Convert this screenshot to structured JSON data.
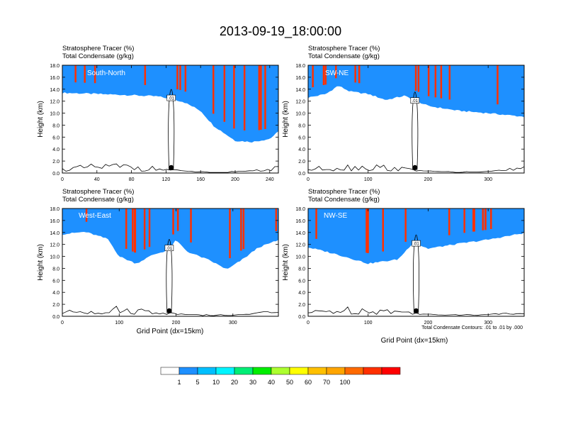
{
  "page": {
    "title": "2013-09-19_18:00:00"
  },
  "colors": {
    "levels": [
      "#ffffff",
      "#1e90ff",
      "#00bfff",
      "#00f5ff",
      "#00ee76",
      "#00ee00",
      "#adff2f",
      "#ffff00",
      "#ffc000",
      "#ffa500",
      "#ff6a00",
      "#ff3000",
      "#ff0000"
    ],
    "contour": "#000000",
    "axis": "#000000"
  },
  "chart_data": [
    {
      "type": "heatmap",
      "panel_label": "South-North",
      "title_line1": "Stratosphere Tracer   (%)",
      "title_line2": "Total Condensate   (g/kg)",
      "ylabel": "Height (km)",
      "xlabel": "",
      "xlim": [
        0,
        250
      ],
      "ylim": [
        0,
        18
      ],
      "xticks": [
        0,
        40,
        80,
        120,
        160,
        200,
        240
      ],
      "yticks": [
        0.0,
        2.0,
        4.0,
        6.0,
        8.0,
        10.0,
        12.0,
        14.0,
        16.0,
        18.0
      ],
      "tracer_top_km": [
        [
          0,
          15.0
        ],
        [
          40,
          14.8
        ],
        [
          80,
          14.6
        ],
        [
          110,
          14.4
        ],
        [
          125,
          14.0
        ],
        [
          140,
          13.5
        ],
        [
          160,
          12.0
        ],
        [
          175,
          9.5
        ],
        [
          200,
          7.0
        ],
        [
          220,
          6.8
        ],
        [
          240,
          7.3
        ],
        [
          250,
          8.5
        ]
      ],
      "band_width_km": 1.6,
      "condensate_label": ".01",
      "marker_x": 126
    },
    {
      "type": "heatmap",
      "panel_label": "SW-NE",
      "title_line1": "Stratosphere Tracer   (%)",
      "title_line2": "Total Condensate   (g/kg)",
      "ylabel": "Height (km)",
      "xlabel": "",
      "xlim": [
        0,
        360
      ],
      "ylim": [
        0,
        18
      ],
      "xticks": [
        0,
        100,
        200,
        300
      ],
      "yticks": [
        0.0,
        2.0,
        4.0,
        6.0,
        8.0,
        10.0,
        12.0,
        14.0,
        16.0,
        18.0
      ],
      "tracer_top_km": [
        [
          0,
          14.0
        ],
        [
          30,
          14.6
        ],
        [
          50,
          16.0
        ],
        [
          70,
          15.0
        ],
        [
          100,
          14.6
        ],
        [
          130,
          13.6
        ],
        [
          160,
          14.3
        ],
        [
          200,
          12.6
        ],
        [
          250,
          11.8
        ],
        [
          300,
          11.4
        ],
        [
          360,
          10.8
        ]
      ],
      "band_width_km": 1.4,
      "condensate_label": ".01",
      "marker_x": 178
    },
    {
      "type": "heatmap",
      "panel_label": "West-East",
      "title_line1": "Stratosphere Tracer   (%)",
      "title_line2": "Total Condensate   (g/kg)",
      "ylabel": "Height (km)",
      "xlabel": "Grid Point (dx=15km)",
      "xlim": [
        0,
        380
      ],
      "ylim": [
        0,
        18
      ],
      "xticks": [
        0,
        100,
        200,
        300
      ],
      "yticks": [
        0.0,
        2.0,
        4.0,
        6.0,
        8.0,
        10.0,
        12.0,
        14.0,
        16.0,
        18.0
      ],
      "tracer_top_km": [
        [
          0,
          15.2
        ],
        [
          40,
          15.6
        ],
        [
          80,
          14.4
        ],
        [
          100,
          11.5
        ],
        [
          130,
          10.3
        ],
        [
          160,
          11.8
        ],
        [
          185,
          12.5
        ],
        [
          200,
          14.2
        ],
        [
          220,
          12.3
        ],
        [
          260,
          10.8
        ],
        [
          290,
          9.3
        ],
        [
          320,
          11.2
        ],
        [
          345,
          13.0
        ],
        [
          380,
          14.2
        ]
      ],
      "band_width_km": 1.5,
      "condensate_label": ".01",
      "marker_x": 188
    },
    {
      "type": "heatmap",
      "panel_label": "NW-SE",
      "title_line1": "Stratosphere Tracer   (%)",
      "title_line2": "Total Condensate   (g/kg)",
      "ylabel": "Height (km)",
      "xlabel": "Grid Point (dx=15km)",
      "xlim": [
        0,
        360
      ],
      "ylim": [
        0,
        18
      ],
      "xticks": [
        0,
        100,
        200,
        300
      ],
      "yticks": [
        0.0,
        2.0,
        4.0,
        6.0,
        8.0,
        10.0,
        12.0,
        14.0,
        16.0,
        18.0
      ],
      "tracer_top_km": [
        [
          0,
          13.0
        ],
        [
          30,
          12.3
        ],
        [
          60,
          11.5
        ],
        [
          100,
          10.3
        ],
        [
          150,
          11.0
        ],
        [
          175,
          13.8
        ],
        [
          200,
          12.8
        ],
        [
          250,
          13.6
        ],
        [
          300,
          14.3
        ],
        [
          360,
          15.4
        ]
      ],
      "band_width_km": 1.5,
      "condensate_label": ".01",
      "marker_x": 180,
      "footnote": "Total Condensate Contours: .01 to .01 by .000"
    }
  ],
  "legend": {
    "labels": [
      "1",
      "5",
      "10",
      "20",
      "30",
      "40",
      "50",
      "60",
      "70",
      "100"
    ]
  }
}
